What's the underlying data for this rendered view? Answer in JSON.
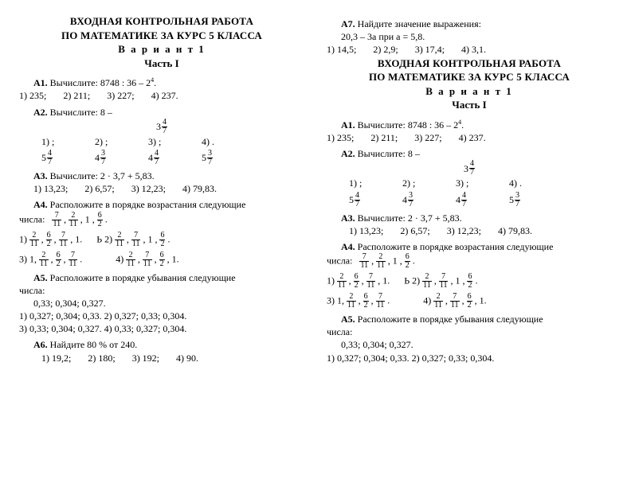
{
  "header": {
    "title1": "ВХОДНАЯ КОНТРОЛЬНАЯ РАБОТА",
    "title2": "ПО МАТЕМАТИКЕ ЗА КУРС 5 КЛАССА",
    "variant": "В а р и а н т  1",
    "part": "Часть I"
  },
  "A1": {
    "label": "А1.",
    "text_pre": " Вычислите: 8748 : 36 – 2",
    "exp": "4",
    "text_post": ".",
    "opts": [
      "1) 235;",
      "2) 211;",
      "3) 227;",
      "4) 237."
    ]
  },
  "A2": {
    "label": "А2.",
    "text": " Вычислите: 8 –",
    "center_mixed": {
      "w": "3",
      "n": "4",
      "d": "7"
    },
    "row_opts": [
      "1)         ;",
      "2)         ;",
      "3)         ;",
      "4)         ."
    ],
    "row_fracs": [
      {
        "w": "5",
        "n": "4",
        "d": "7"
      },
      {
        "w": "4",
        "n": "3",
        "d": "7"
      },
      {
        "w": "4",
        "n": "4",
        "d": "7"
      },
      {
        "w": "5",
        "n": "3",
        "d": "7"
      }
    ]
  },
  "A3": {
    "label": "А3.",
    "text": " Вычислите: 2 · 3,7 + 5,83.",
    "opts": [
      "1) 13,23;",
      "2) 6,57;",
      "3) 12,23;",
      "4) 79,83."
    ]
  },
  "A4": {
    "label": "А4.",
    "text": " Расположите в порядке возрастания следующие",
    "numbers_label": "числа:",
    "given": [
      {
        "n": "7",
        "d": "11"
      },
      {
        "n": "2",
        "d": "11"
      },
      "1",
      {
        "n": "6",
        "d": "2"
      }
    ],
    "opt1_label": "1)",
    "opt1": [
      {
        "n": "2",
        "d": "11"
      },
      {
        "n": "6",
        "d": "2"
      },
      {
        "n": "7",
        "d": "11"
      },
      "1."
    ],
    "optB_label": "Ь   2)",
    "opt2": [
      {
        "n": "2",
        "d": "11"
      },
      {
        "n": "7",
        "d": "11"
      },
      "1",
      {
        "n": "6",
        "d": "2"
      }
    ],
    "opt3_label": "3) 1,",
    "opt3": [
      {
        "n": "2",
        "d": "11"
      },
      {
        "n": "6",
        "d": "2"
      },
      {
        "n": "7",
        "d": "11"
      }
    ],
    "opt4_label": "4)",
    "opt4": [
      {
        "n": "2",
        "d": "11"
      },
      {
        "n": "7",
        "d": "11"
      },
      {
        "n": "6",
        "d": "2"
      },
      "1."
    ]
  },
  "A5": {
    "label": "А5.",
    "text": " Расположите в порядке убывания следующие",
    "numbers_label": "числа:",
    "given": "0,33; 0,304; 0,327.",
    "opts1": "1) 0,327;  0,304;  0,33.      2) 0,327;  0,33;  0,304.",
    "opts2": "3) 0,33;  0,304;  0,327.      4) 0,33;  0,327;  0,304."
  },
  "A6": {
    "label": "А6.",
    "text": " Найдите 80 % от 240.",
    "opts": [
      "1) 19,2;",
      "2) 180;",
      "3) 192;",
      "4) 90."
    ]
  },
  "A7": {
    "label": "А7.",
    "text": " Найдите значение выражения:",
    "expr": "20,3 – 3а при а = 5,8.",
    "opts": [
      "1) 14,5;",
      "2) 2,9;",
      "3) 17,4;",
      "4) 3,1."
    ]
  },
  "A5r_opts1": "1) 0,327;  0,304;  0,33.      2) 0,327;  0,33;  0,304."
}
